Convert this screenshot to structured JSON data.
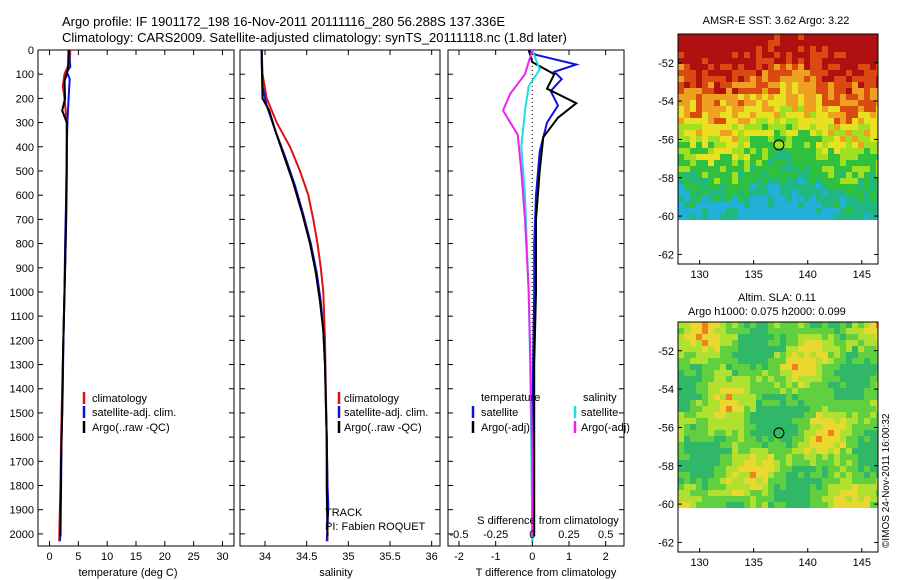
{
  "header": {
    "line1": "Argo profile: IF 1901172_198 16-Nov-2011 20111116_280 56.288S 137.336E",
    "line2": "Climatology: CARS2009. Satellite-adjusted climatology: synTS_20111118.nc (1.8d later)"
  },
  "colors": {
    "climatology": "#dd1111",
    "satellite": "#1111dd",
    "argo": "#000000",
    "satellite_salinity": "#22dddd",
    "argo_salinity": "#ee22ee"
  },
  "panels": {
    "temperature": {
      "xlabel": "temperature (deg C)",
      "legend": [
        "climatology",
        "satellite-adj. clim.",
        "Argo(..raw -QC)"
      ]
    },
    "salinity": {
      "xlabel": "salinity",
      "legend": [
        "climatology",
        "satellite-adj. clim.",
        "Argo(..raw -QC)"
      ],
      "track_label": "TRACK",
      "pi_label": "PI: Fabien ROQUET"
    },
    "difference": {
      "xlabel": "T difference from climatology",
      "top_label": "S difference from climatology",
      "legend_temp_title": "temperature",
      "legend_sal_title": "salinity",
      "legend_temp": [
        "satellite",
        "Argo(-adj)"
      ],
      "legend_sal": [
        "satellite",
        "Argo(-adj)"
      ]
    },
    "map_sst": {
      "title": "AMSR-E SST: 3.62 Argo: 3.22"
    },
    "map_sla": {
      "title1": "Altim. SLA: 0.11",
      "title2": "Argo h1000: 0.075 h2000: 0.099",
      "side_label": "©IMOS 24-Nov-2011 16:00:32"
    }
  },
  "chart_data": [
    {
      "type": "line",
      "name": "temperature",
      "xlabel": "temperature (deg C)",
      "xlim": [
        -2,
        32
      ],
      "ylim": [
        2050,
        0
      ],
      "xticks": [
        0,
        5,
        10,
        15,
        20,
        25,
        30
      ],
      "yticks": [
        0,
        100,
        200,
        300,
        400,
        500,
        600,
        700,
        800,
        900,
        1000,
        1100,
        1200,
        1300,
        1400,
        1500,
        1600,
        1700,
        1800,
        1900,
        2000
      ],
      "series": [
        {
          "name": "climatology",
          "color": "#dd1111",
          "points": [
            [
              3.6,
              0
            ],
            [
              3.5,
              50
            ],
            [
              2.6,
              100
            ],
            [
              2.3,
              150
            ],
            [
              2.6,
              200
            ],
            [
              3.0,
              300
            ],
            [
              3.0,
              400
            ],
            [
              2.9,
              600
            ],
            [
              2.8,
              800
            ],
            [
              2.6,
              1000
            ],
            [
              2.4,
              1200
            ],
            [
              2.2,
              1400
            ],
            [
              2.0,
              1600
            ],
            [
              1.9,
              1800
            ],
            [
              1.7,
              2000
            ],
            [
              1.7,
              2030
            ]
          ]
        },
        {
          "name": "satellite-adj. clim.",
          "color": "#1111dd",
          "points": [
            [
              3.4,
              0
            ],
            [
              3.5,
              40
            ],
            [
              3.6,
              70
            ],
            [
              3.0,
              90
            ],
            [
              3.5,
              120
            ],
            [
              3.3,
              200
            ],
            [
              3.1,
              300
            ],
            [
              3.0,
              400
            ],
            [
              2.9,
              600
            ],
            [
              2.7,
              800
            ],
            [
              2.6,
              1000
            ],
            [
              2.4,
              1200
            ],
            [
              2.3,
              1400
            ],
            [
              2.1,
              1600
            ],
            [
              2.0,
              1800
            ],
            [
              1.9,
              2000
            ],
            [
              1.8,
              2030
            ]
          ]
        },
        {
          "name": "Argo(..raw -QC)",
          "color": "#000000",
          "points": [
            [
              3.3,
              0
            ],
            [
              3.2,
              80
            ],
            [
              2.6,
              130
            ],
            [
              2.7,
              200
            ],
            [
              2.2,
              250
            ],
            [
              3.0,
              300
            ],
            [
              3.0,
              500
            ],
            [
              2.9,
              700
            ],
            [
              2.7,
              900
            ],
            [
              2.5,
              1100
            ],
            [
              2.3,
              1300
            ],
            [
              2.2,
              1500
            ],
            [
              2.0,
              1700
            ],
            [
              1.9,
              1900
            ],
            [
              1.9,
              2010
            ]
          ]
        }
      ]
    },
    {
      "type": "line",
      "name": "salinity",
      "xlabel": "salinity",
      "xlim": [
        33.7,
        36.1
      ],
      "ylim": [
        2050,
        0
      ],
      "xticks": [
        34,
        34.5,
        35,
        35.5,
        36
      ],
      "series": [
        {
          "name": "climatology",
          "color": "#dd1111",
          "points": [
            [
              33.96,
              0
            ],
            [
              33.97,
              100
            ],
            [
              34.02,
              200
            ],
            [
              34.14,
              300
            ],
            [
              34.3,
              400
            ],
            [
              34.42,
              500
            ],
            [
              34.52,
              600
            ],
            [
              34.58,
              700
            ],
            [
              34.63,
              800
            ],
            [
              34.67,
              900
            ],
            [
              34.7,
              1000
            ],
            [
              34.72,
              1200
            ],
            [
              34.73,
              1400
            ],
            [
              34.74,
              1600
            ],
            [
              34.75,
              1800
            ],
            [
              34.75,
              2030
            ]
          ]
        },
        {
          "name": "satellite-adj. clim.",
          "color": "#1111dd",
          "points": [
            [
              33.96,
              0
            ],
            [
              33.96,
              60
            ],
            [
              33.97,
              150
            ],
            [
              34.02,
              230
            ],
            [
              34.12,
              330
            ],
            [
              34.24,
              440
            ],
            [
              34.36,
              560
            ],
            [
              34.46,
              680
            ],
            [
              34.55,
              800
            ],
            [
              34.62,
              920
            ],
            [
              34.67,
              1040
            ],
            [
              34.7,
              1160
            ],
            [
              34.72,
              1300
            ],
            [
              34.73,
              1450
            ],
            [
              34.74,
              1600
            ],
            [
              34.75,
              1800
            ],
            [
              34.76,
              1880
            ],
            [
              34.75,
              1980
            ],
            [
              34.74,
              2030
            ]
          ]
        },
        {
          "name": "Argo(..raw -QC)",
          "color": "#000000",
          "points": [
            [
              33.96,
              0
            ],
            [
              33.97,
              200
            ],
            [
              34.05,
              250
            ],
            [
              34.12,
              330
            ],
            [
              34.22,
              430
            ],
            [
              34.34,
              550
            ],
            [
              34.45,
              680
            ],
            [
              34.54,
              800
            ],
            [
              34.61,
              920
            ],
            [
              34.66,
              1040
            ],
            [
              34.7,
              1160
            ],
            [
              34.72,
              1300
            ],
            [
              34.73,
              1450
            ],
            [
              34.74,
              1600
            ],
            [
              34.74,
              1800
            ],
            [
              34.75,
              2010
            ]
          ]
        }
      ]
    },
    {
      "type": "line",
      "name": "difference",
      "xlabel": "T difference from climatology",
      "xlim": [
        -2.3,
        2.5
      ],
      "xticks": [
        -2,
        -1,
        0,
        1,
        2
      ],
      "top_ticks": [
        "-0.5",
        "-0.25",
        "0",
        "0.25",
        "0.5"
      ],
      "ylim": [
        2050,
        0
      ],
      "series": [
        {
          "name": "temperature satellite",
          "color": "#1111dd",
          "points": [
            [
              -0.1,
              0
            ],
            [
              0.1,
              20
            ],
            [
              1.2,
              60
            ],
            [
              0.6,
              90
            ],
            [
              0.8,
              120
            ],
            [
              0.5,
              170
            ],
            [
              0.7,
              230
            ],
            [
              0.4,
              300
            ],
            [
              0.2,
              420
            ],
            [
              0.1,
              600
            ],
            [
              0.05,
              800
            ],
            [
              0.05,
              1000
            ],
            [
              0.02,
              1300
            ],
            [
              0,
              1600
            ],
            [
              0,
              2030
            ]
          ]
        },
        {
          "name": "temperature Argo(-adj)",
          "color": "#000000",
          "points": [
            [
              -0.1,
              0
            ],
            [
              0.0,
              50
            ],
            [
              0.6,
              100
            ],
            [
              0.4,
              160
            ],
            [
              1.2,
              220
            ],
            [
              0.7,
              280
            ],
            [
              0.3,
              360
            ],
            [
              0.2,
              500
            ],
            [
              0.1,
              700
            ],
            [
              0.1,
              1000
            ],
            [
              0.05,
              1300
            ],
            [
              0.05,
              1700
            ],
            [
              0.05,
              2010
            ]
          ]
        },
        {
          "name": "salinity satellite",
          "color": "#22dddd",
          "points": [
            [
              0,
              0
            ],
            [
              0.2,
              80
            ],
            [
              -0.1,
              150
            ],
            [
              -0.2,
              250
            ],
            [
              -0.3,
              400
            ],
            [
              -0.2,
              600
            ],
            [
              -0.15,
              800
            ],
            [
              -0.1,
              1000
            ],
            [
              -0.06,
              1300
            ],
            [
              -0.03,
              1600
            ],
            [
              0,
              2030
            ]
          ]
        },
        {
          "name": "salinity Argo(-adj)",
          "color": "#ee22ee",
          "points": [
            [
              0,
              0
            ],
            [
              -0.2,
              100
            ],
            [
              -0.6,
              180
            ],
            [
              -0.8,
              250
            ],
            [
              -0.4,
              350
            ],
            [
              -0.3,
              500
            ],
            [
              -0.2,
              700
            ],
            [
              -0.1,
              1000
            ],
            [
              -0.05,
              1300
            ],
            [
              0,
              1700
            ],
            [
              0,
              2010
            ]
          ]
        }
      ]
    },
    {
      "type": "heatmap",
      "name": "map_sst",
      "title": "AMSR-E SST: 3.62 Argo: 3.22",
      "xlim": [
        128,
        146.5
      ],
      "ylim": [
        -62.5,
        -50.5
      ],
      "xticks": [
        130,
        135,
        140,
        145
      ],
      "yticks": [
        -52,
        -54,
        -56,
        -58,
        -60,
        -62
      ],
      "marker": [
        137.336,
        -56.288
      ]
    },
    {
      "type": "heatmap",
      "name": "map_sla",
      "title": "Altim. SLA: 0.11",
      "xlim": [
        128,
        146.5
      ],
      "ylim": [
        -62.5,
        -50.5
      ],
      "xticks": [
        130,
        135,
        140,
        145
      ],
      "yticks": [
        -52,
        -54,
        -56,
        -58,
        -60,
        -62
      ],
      "marker": [
        137.336,
        -56.288
      ]
    }
  ]
}
